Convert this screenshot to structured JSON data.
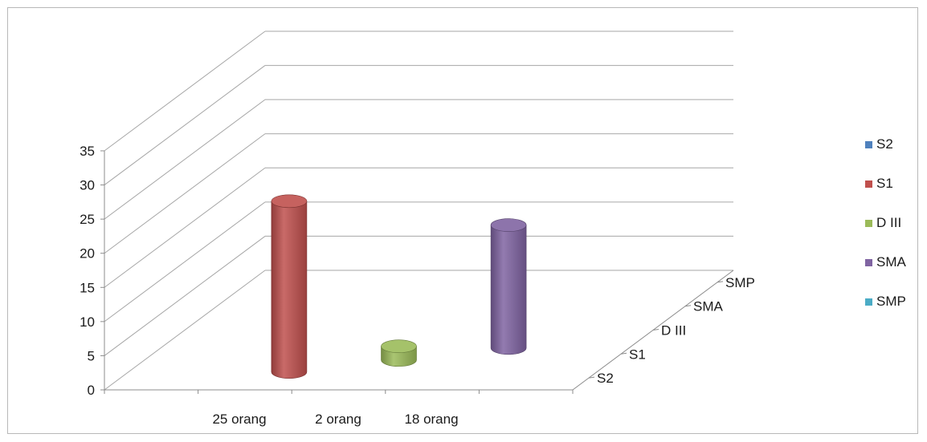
{
  "chart_data": {
    "type": "bar",
    "variant": "3d-cylinder",
    "categories": [
      "25 orang",
      "2 orang",
      "18 orang"
    ],
    "depth_axis": [
      "S2",
      "S1",
      "D III",
      "SMA",
      "SMP"
    ],
    "series": [
      {
        "name": "S2",
        "color": "#4f81bd",
        "values": [
          null,
          null,
          null
        ]
      },
      {
        "name": "S1",
        "color": "#c0504d",
        "values": [
          25,
          null,
          null
        ]
      },
      {
        "name": "D III",
        "color": "#9bbb59",
        "values": [
          null,
          2,
          null
        ]
      },
      {
        "name": "SMA",
        "color": "#8064a2",
        "values": [
          null,
          null,
          18
        ]
      },
      {
        "name": "SMP",
        "color": "#4bacc6",
        "values": [
          null,
          null,
          null
        ]
      }
    ],
    "yticks": [
      "0",
      "5",
      "10",
      "15",
      "20",
      "25",
      "30",
      "35"
    ],
    "ylim": [
      0,
      35
    ],
    "grid": true,
    "legend_position": "right"
  }
}
